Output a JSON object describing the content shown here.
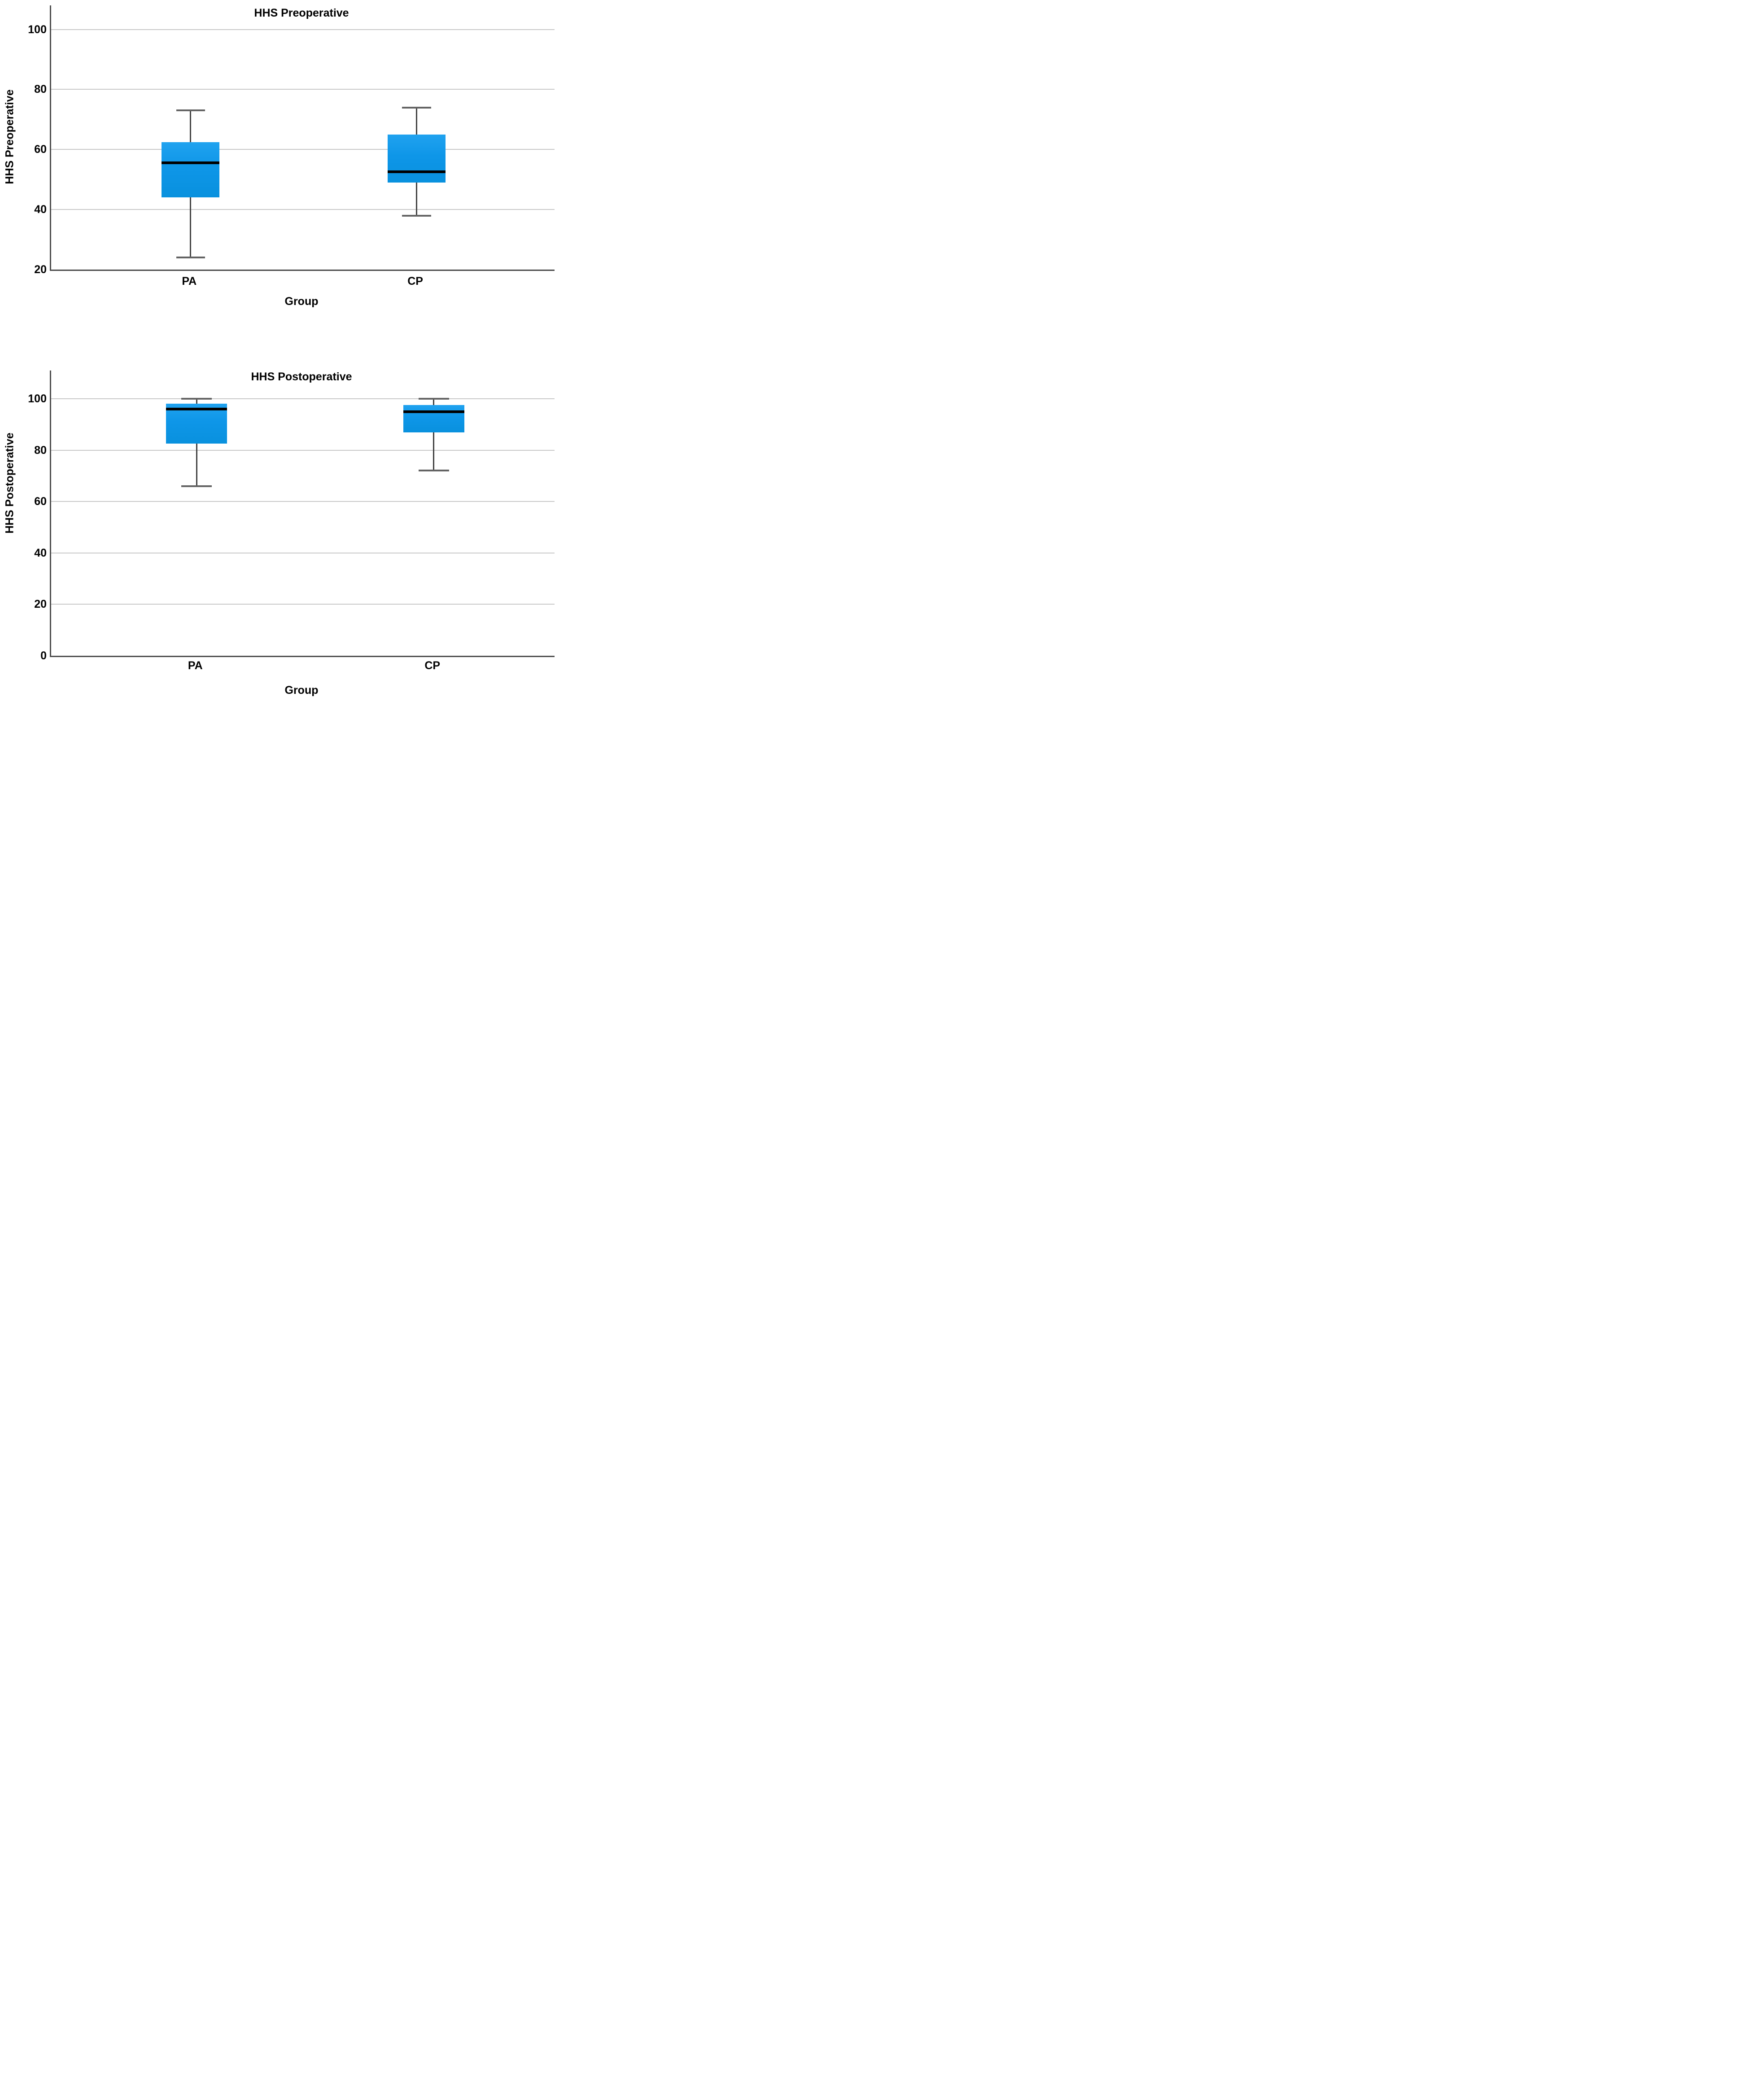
{
  "page": {
    "background": "#ffffff"
  },
  "colors": {
    "box_fill": "#0e96e8",
    "box_fill_top": "#20a2ef",
    "box_fill_bottom": "#0991de",
    "median_line": "#000000",
    "whisker_line": "#434343",
    "whisker_cap": "#636363",
    "axis_line": "#4c4c4c",
    "gridline": "#c9c9c9",
    "text": "#000000"
  },
  "chart_data": [
    {
      "type": "box",
      "title": "HHS Preoperative",
      "ylabel": "HHS Preoperative",
      "xlabel": "Group",
      "categories": [
        "PA",
        "CP"
      ],
      "y_ticks": [
        20,
        40,
        60,
        80,
        100
      ],
      "ylim": [
        20,
        108
      ],
      "grid": true,
      "legend": "none",
      "series": [
        {
          "name": "PA",
          "whisker_low": 24,
          "q1": 44,
          "median": 55.5,
          "q3": 62.5,
          "whisker_high": 73
        },
        {
          "name": "CP",
          "whisker_low": 38,
          "q1": 49,
          "median": 52.5,
          "q3": 65,
          "whisker_high": 74
        }
      ]
    },
    {
      "type": "box",
      "title": "HHS Postoperative",
      "ylabel": "HHS Postoperative",
      "xlabel": "Group",
      "categories": [
        "PA",
        "CP"
      ],
      "y_ticks": [
        0,
        20,
        40,
        60,
        80,
        100
      ],
      "ylim": [
        0,
        111
      ],
      "grid": true,
      "legend": "none",
      "series": [
        {
          "name": "PA",
          "whisker_low": 66,
          "q1": 82.5,
          "median": 96,
          "q3": 98,
          "whisker_high": 100
        },
        {
          "name": "CP",
          "whisker_low": 72,
          "q1": 87,
          "median": 95,
          "q3": 97.5,
          "whisker_high": 100
        }
      ]
    }
  ]
}
